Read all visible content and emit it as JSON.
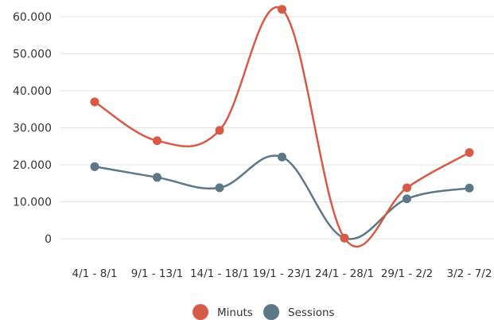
{
  "chart_data": {
    "type": "line",
    "categories": [
      "4/1 - 8/1",
      "9/1 - 13/1",
      "14/1 - 18/1",
      "19/1 - 23/1",
      "24/1 - 28/1",
      "29/1 - 2/2",
      "3/2 - 7/2"
    ],
    "ylim": [
      0,
      60000
    ],
    "yticks": [
      0,
      10000,
      20000,
      30000,
      40000,
      50000,
      60000
    ],
    "ytick_labels": [
      "0",
      "10.000",
      "20.000",
      "30.000",
      "40.000",
      "50.000",
      "60.000"
    ],
    "grid": true,
    "legend_position": "bottom-center",
    "series": [
      {
        "name": "Minuts",
        "color": "#d65a45",
        "values": [
          37000,
          26500,
          29300,
          62000,
          200,
          13800,
          23300
        ]
      },
      {
        "name": "Sessions",
        "color": "#5c7785",
        "values": [
          19500,
          16600,
          13800,
          22100,
          200,
          10800,
          13700
        ]
      }
    ]
  }
}
